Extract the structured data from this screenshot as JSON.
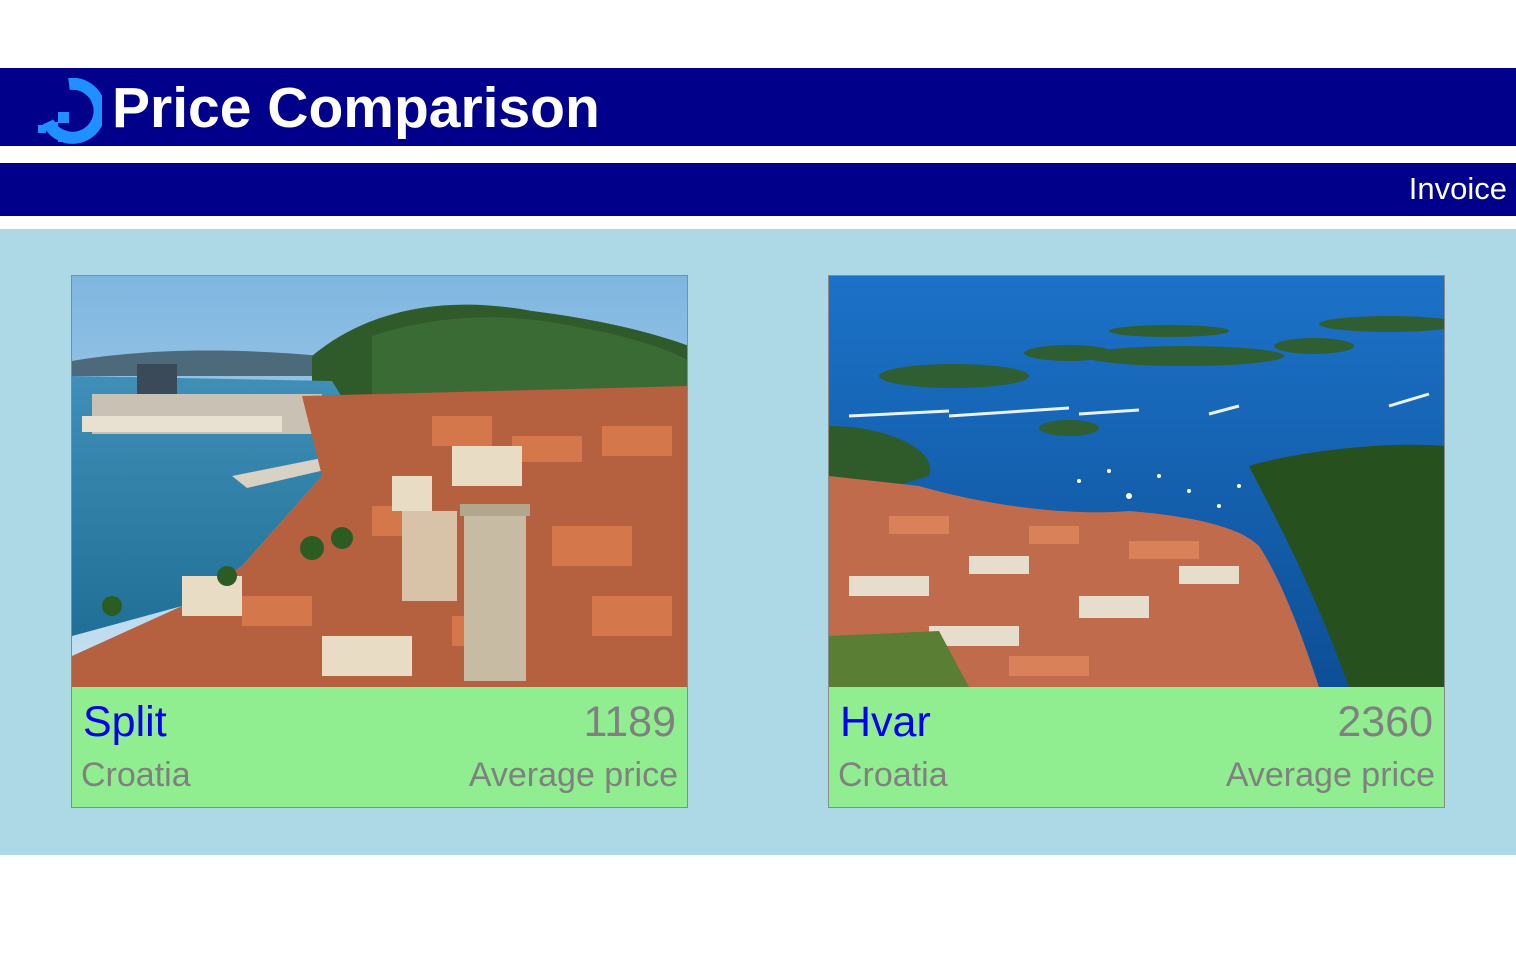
{
  "header": {
    "title": "Price Comparison",
    "logo_icon": "logo-icon",
    "background_color": "#00008b",
    "text_color": "#ffffff"
  },
  "nav": {
    "invoice_label": "Invoice"
  },
  "content": {
    "background_color": "#add8e6",
    "card_color": "#90ee90",
    "cards": [
      {
        "image_description": "split-harbor-photo",
        "city": "Split",
        "country": "Croatia",
        "price": "1189",
        "price_label": "Average price"
      },
      {
        "image_description": "hvar-aerial-photo",
        "city": "Hvar",
        "country": "Croatia",
        "price": "2360",
        "price_label": "Average price"
      }
    ]
  },
  "colors": {
    "link": "#0000ee",
    "muted_text": "#808080"
  }
}
